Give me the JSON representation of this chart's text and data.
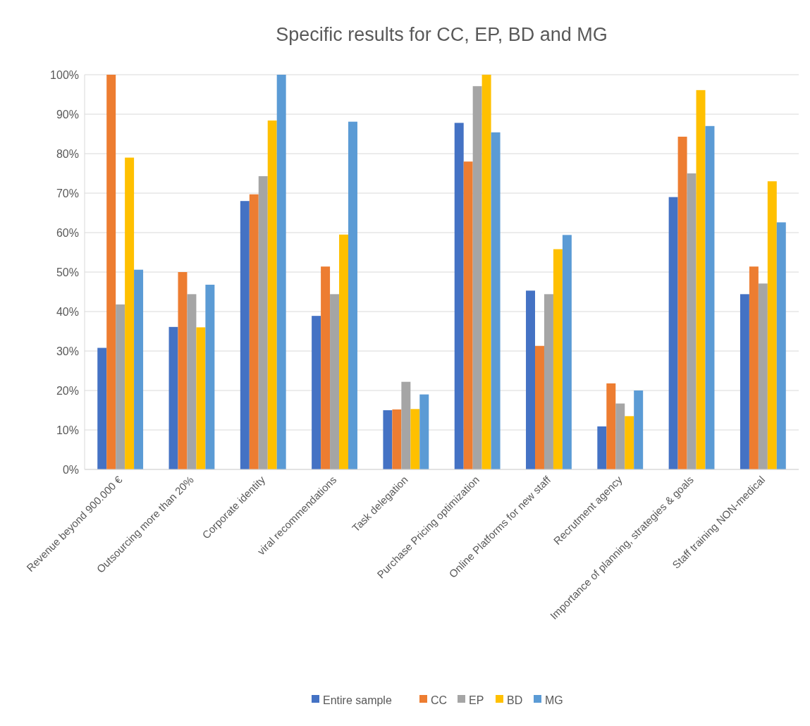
{
  "chart_data": {
    "type": "bar",
    "title": "Specific results for CC, EP, BD and MG",
    "categories": [
      "Revenue beyond 900.000 €",
      "Outsourcing more than 20%",
      "Corporate identity",
      "viral recommendations",
      "Task delegation",
      "Purchase Pricing optimization",
      "Online Platforms for new staff",
      "Recrutment agency",
      "Importance of planning, strategies & goals",
      "Staff training NON-medical"
    ],
    "series": [
      {
        "name": "Entire sample",
        "color": "#4472c4",
        "values": [
          30.8,
          36.1,
          68,
          38.9,
          15,
          87.8,
          45.3,
          10.9,
          69,
          44.4
        ]
      },
      {
        "name": "CC",
        "color": "#ed7d31",
        "values": [
          100,
          50,
          69.7,
          51.4,
          15.2,
          78,
          31.3,
          21.8,
          84.3,
          51.4
        ]
      },
      {
        "name": "EP",
        "color": "#a5a5a5",
        "values": [
          41.8,
          44.4,
          74.3,
          44.4,
          22.2,
          97.1,
          44.4,
          16.7,
          75,
          47.1
        ]
      },
      {
        "name": "BD",
        "color": "#ffc000",
        "values": [
          79,
          36,
          88.4,
          59.5,
          15.3,
          100,
          55.8,
          13.5,
          96.1,
          73
        ]
      },
      {
        "name": "MG",
        "color": "#5b9bd5",
        "values": [
          50.6,
          46.8,
          100,
          88.1,
          19,
          85.4,
          59.4,
          20,
          87,
          62.6
        ]
      }
    ],
    "ylim": [
      0,
      100
    ],
    "yticks": [
      {
        "value": 0,
        "label": "0%"
      },
      {
        "value": 10,
        "label": "10%"
      },
      {
        "value": 20,
        "label": "20%"
      },
      {
        "value": 30,
        "label": "30%"
      },
      {
        "value": 40,
        "label": "40%"
      },
      {
        "value": 50,
        "label": "50%"
      },
      {
        "value": 60,
        "label": "60%"
      },
      {
        "value": 70,
        "label": "70%"
      },
      {
        "value": 80,
        "label": "80%"
      },
      {
        "value": 90,
        "label": "90%"
      },
      {
        "value": 100,
        "label": "100%"
      }
    ],
    "grid": "y",
    "legend": "bottom"
  }
}
